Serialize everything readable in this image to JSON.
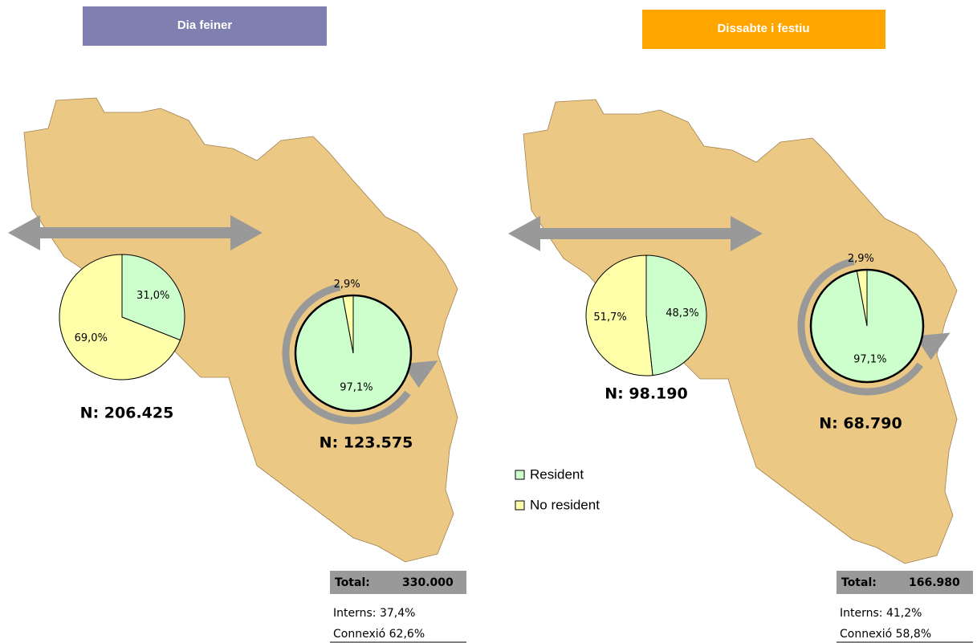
{
  "panels": [
    {
      "title": "Dia feiner",
      "pies": [
        {
          "type": "pie",
          "values": [
            31.0,
            69.0
          ],
          "value_labels": [
            "31,0%",
            "69,0%"
          ],
          "n_label": "N: 206.425"
        },
        {
          "type": "pie",
          "values": [
            97.1,
            2.9
          ],
          "value_labels": [
            "97,1%",
            "2,9%"
          ],
          "n_label": "N: 123.575"
        }
      ],
      "totals": {
        "total_label": "Total:",
        "total_value": "330.000",
        "rows": [
          "Interns: 37,4%",
          "Connexió 62,6%"
        ]
      }
    },
    {
      "title": "Dissabte i festiu",
      "pies": [
        {
          "type": "pie",
          "values": [
            48.3,
            51.7
          ],
          "value_labels": [
            "48,3%",
            "51,7%"
          ],
          "n_label": "N: 98.190"
        },
        {
          "type": "pie",
          "values": [
            97.1,
            2.9
          ],
          "value_labels": [
            "97,1%",
            "2,9%"
          ],
          "n_label": "N: 68.790"
        }
      ],
      "totals": {
        "total_label": "Total:",
        "total_value": "166.980",
        "rows": [
          "Interns: 41,2%",
          "Connexió 58,8%"
        ]
      }
    }
  ],
  "legend": [
    {
      "name": "Resident",
      "color": "#ccffcc"
    },
    {
      "name": "No resident",
      "color": "#ffffaa"
    }
  ]
}
